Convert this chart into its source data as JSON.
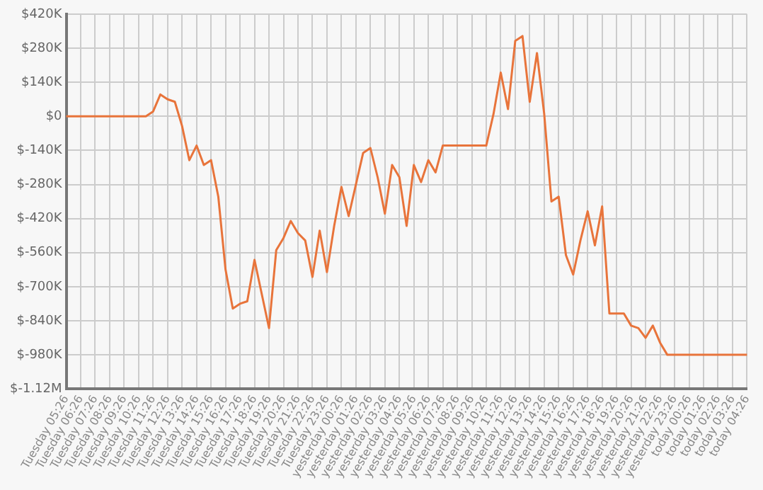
{
  "chart_data": {
    "type": "line",
    "categories": [
      "Tuesday 05:26",
      null,
      "Tuesday 06:26",
      null,
      "Tuesday 07:26",
      null,
      "Tuesday 08:26",
      null,
      "Tuesday 09:26",
      null,
      "Tuesday 10:26",
      null,
      "Tuesday 11:26",
      null,
      "Tuesday 12:26",
      null,
      "Tuesday 13:26",
      null,
      "Tuesday 14:26",
      null,
      "Tuesday 15:26",
      null,
      "Tuesday 16:26",
      null,
      "Tuesday 17:26",
      null,
      "Tuesday 18:26",
      null,
      "Tuesday 19:26",
      null,
      "Tuesday 20:26",
      null,
      "Tuesday 21:26",
      null,
      "Tuesday 22:26",
      null,
      "Tuesday 23:26",
      null,
      "yesterday 00:26",
      null,
      "yesterday 01:26",
      null,
      "yesterday 02:26",
      null,
      "yesterday 03:26",
      null,
      "yesterday 04:26",
      null,
      "yesterday 05:26",
      null,
      "yesterday 06:26",
      null,
      "yesterday 07:26",
      null,
      "yesterday 08:26",
      null,
      "yesterday 09:26",
      null,
      "yesterday 10:26",
      null,
      "yesterday 11:26",
      null,
      "yesterday 12:26",
      null,
      "yesterday 13:26",
      null,
      "yesterday 14:26",
      null,
      "yesterday 15:26",
      null,
      "yesterday 16:26",
      null,
      "yesterday 17:26",
      null,
      "yesterday 18:26",
      null,
      "yesterday 19:26",
      null,
      "yesterday 20:26",
      null,
      "yesterday 21:26",
      null,
      "yesterday 22:26",
      null,
      "yesterday 23:26",
      null,
      "today 00:26",
      null,
      "today 01:26",
      null,
      "today 02:26",
      null,
      "today 03:26",
      null,
      "today 04:26"
    ],
    "series": [
      {
        "color": "#e8743b",
        "values": [
          0,
          0,
          0,
          0,
          0,
          0,
          0,
          0,
          0,
          0,
          0,
          0,
          20000,
          90000,
          70000,
          60000,
          -40000,
          -180000,
          -120000,
          -200000,
          -180000,
          -330000,
          -630000,
          -790000,
          -770000,
          -760000,
          -590000,
          -730000,
          -870000,
          -550000,
          -500000,
          -430000,
          -480000,
          -510000,
          -660000,
          -470000,
          -640000,
          -450000,
          -290000,
          -410000,
          -280000,
          -150000,
          -130000,
          -250000,
          -400000,
          -200000,
          -250000,
          -450000,
          -200000,
          -270000,
          -180000,
          -230000,
          -120000,
          -120000,
          -120000,
          -120000,
          -120000,
          -120000,
          -120000,
          10000,
          180000,
          30000,
          310000,
          330000,
          60000,
          260000,
          10000,
          -350000,
          -330000,
          -570000,
          -650000,
          -510000,
          -390000,
          -530000,
          -370000,
          -810000,
          -810000,
          -810000,
          -860000,
          -870000,
          -910000,
          -860000,
          -930000,
          -980000,
          -980000,
          -980000,
          -980000,
          -980000,
          -980000,
          -980000,
          -980000,
          -980000,
          -980000,
          -980000,
          -980000
        ]
      }
    ],
    "ylim": [
      -1120000,
      420000
    ],
    "yticks": [
      {
        "value": 420000,
        "label": "$420K"
      },
      {
        "value": 280000,
        "label": "$280K"
      },
      {
        "value": 140000,
        "label": "$140K"
      },
      {
        "value": 0,
        "label": "$0"
      },
      {
        "value": -140000,
        "label": "$-140K"
      },
      {
        "value": -280000,
        "label": "$-280K"
      },
      {
        "value": -420000,
        "label": "$-420K"
      },
      {
        "value": -560000,
        "label": "$-560K"
      },
      {
        "value": -700000,
        "label": "$-700K"
      },
      {
        "value": -840000,
        "label": "$-840K"
      },
      {
        "value": -980000,
        "label": "$-980K"
      },
      {
        "value": -1120000,
        "label": "$-1.12M"
      }
    ],
    "grid": true,
    "legend": false,
    "marker": "none",
    "line_style": "solid"
  }
}
